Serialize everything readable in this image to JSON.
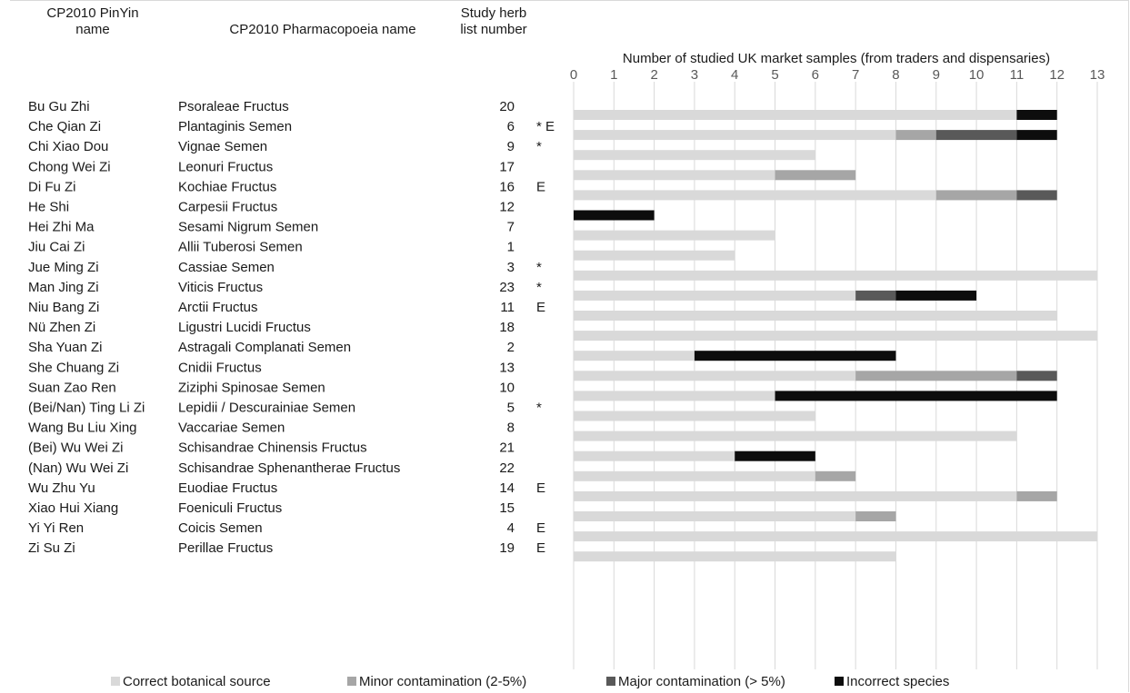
{
  "headers": {
    "pinyin": "CP2010 PinYin\nname",
    "pharmacopoeia": "CP2010 Pharmacopoeia name",
    "number": "Study herb\nlist number"
  },
  "chart_data": {
    "type": "bar",
    "orientation": "horizontal",
    "stacked": true,
    "title": "Number of studied UK market samples (from traders and dispensaries)",
    "xlim": [
      0,
      13
    ],
    "xticks": [
      "0",
      "1",
      "2",
      "3",
      "4",
      "5",
      "6",
      "7",
      "8",
      "9",
      "10",
      "11",
      "12",
      "13"
    ],
    "grid": true,
    "legend_position": "bottom",
    "colors": {
      "Correct botanical source": "#d9d9d9",
      "Minor contamination (2-5%)": "#a6a6a6",
      "Major contamination (> 5%)": "#595959",
      "Incorrect species": "#0d0d0d"
    },
    "rows": [
      {
        "pinyin": "Bu Gu Zhi",
        "latin": "Psoraleae Fructus",
        "number": "20",
        "mark": ""
      },
      {
        "pinyin": "Che Qian Zi",
        "latin": "Plantaginis Semen",
        "number": "6",
        "mark": "* E"
      },
      {
        "pinyin": "Chi Xiao Dou",
        "latin": "Vignae Semen",
        "number": "9",
        "mark": "*"
      },
      {
        "pinyin": "Chong Wei Zi",
        "latin": "Leonuri Fructus",
        "number": "17",
        "mark": ""
      },
      {
        "pinyin": "Di Fu Zi",
        "latin": "Kochiae Fructus",
        "number": "16",
        "mark": "E"
      },
      {
        "pinyin": "He Shi",
        "latin": "Carpesii Fructus",
        "number": "12",
        "mark": ""
      },
      {
        "pinyin": "Hei Zhi Ma",
        "latin": "Sesami Nigrum Semen",
        "number": "7",
        "mark": ""
      },
      {
        "pinyin": "Jiu Cai Zi",
        "latin": "Allii Tuberosi Semen",
        "number": "1",
        "mark": ""
      },
      {
        "pinyin": "Jue Ming Zi",
        "latin": "Cassiae Semen",
        "number": "3",
        "mark": "*"
      },
      {
        "pinyin": "Man Jing Zi",
        "latin": "Viticis Fructus",
        "number": "23",
        "mark": "*"
      },
      {
        "pinyin": "Niu Bang Zi",
        "latin": "Arctii Fructus",
        "number": "11",
        "mark": "E"
      },
      {
        "pinyin": "Nü Zhen Zi",
        "latin": "Ligustri Lucidi Fructus",
        "number": "18",
        "mark": ""
      },
      {
        "pinyin": "Sha Yuan Zi",
        "latin": "Astragali Complanati Semen",
        "number": "2",
        "mark": ""
      },
      {
        "pinyin": "She Chuang Zi",
        "latin": "Cnidii Fructus",
        "number": "13",
        "mark": ""
      },
      {
        "pinyin": "Suan Zao Ren",
        "latin": "Ziziphi Spinosae Semen",
        "number": "10",
        "mark": ""
      },
      {
        "pinyin": "(Bei/Nan) Ting Li Zi",
        "latin": "Lepidii / Descurainiae Semen",
        "number": "5",
        "mark": "*"
      },
      {
        "pinyin": "Wang Bu Liu Xing",
        "latin": "Vaccariae Semen",
        "number": "8",
        "mark": ""
      },
      {
        "pinyin": "(Bei) Wu Wei Zi",
        "latin": "Schisandrae Chinensis Fructus",
        "number": "21",
        "mark": ""
      },
      {
        "pinyin": "(Nan) Wu Wei Zi",
        "latin": "Schisandrae Sphenantherae Fructus",
        "number": "22",
        "mark": ""
      },
      {
        "pinyin": "Wu Zhu Yu",
        "latin": "Euodiae Fructus",
        "number": "14",
        "mark": "E"
      },
      {
        "pinyin": "Xiao Hui Xiang",
        "latin": "Foeniculi Fructus",
        "number": "15",
        "mark": ""
      },
      {
        "pinyin": "Yi Yi Ren",
        "latin": "Coicis Semen",
        "number": "4",
        "mark": "E"
      },
      {
        "pinyin": "Zi Su Zi",
        "latin": "Perillae Fructus",
        "number": "19",
        "mark": "E"
      }
    ],
    "series": [
      {
        "name": "Correct botanical source",
        "values": [
          11,
          8,
          6,
          5,
          9,
          0,
          5,
          4,
          13,
          7,
          12,
          13,
          3,
          7,
          5,
          6,
          11,
          4,
          6,
          11,
          7,
          13,
          8
        ]
      },
      {
        "name": "Minor contamination (2-5%)",
        "values": [
          0,
          1,
          0,
          2,
          2,
          0,
          0,
          0,
          0,
          0,
          0,
          0,
          0,
          4,
          0,
          0,
          0,
          0,
          1,
          1,
          1,
          0,
          0
        ]
      },
      {
        "name": "Major contamination (> 5%)",
        "values": [
          0,
          2,
          0,
          0,
          1,
          0,
          0,
          0,
          0,
          1,
          0,
          0,
          0,
          1,
          0,
          0,
          0,
          0,
          0,
          0,
          0,
          0,
          0
        ]
      },
      {
        "name": "Incorrect species",
        "values": [
          1,
          1,
          0,
          0,
          0,
          2,
          0,
          0,
          0,
          2,
          0,
          0,
          5,
          0,
          7,
          0,
          0,
          2,
          0,
          0,
          0,
          0,
          0
        ]
      }
    ]
  }
}
